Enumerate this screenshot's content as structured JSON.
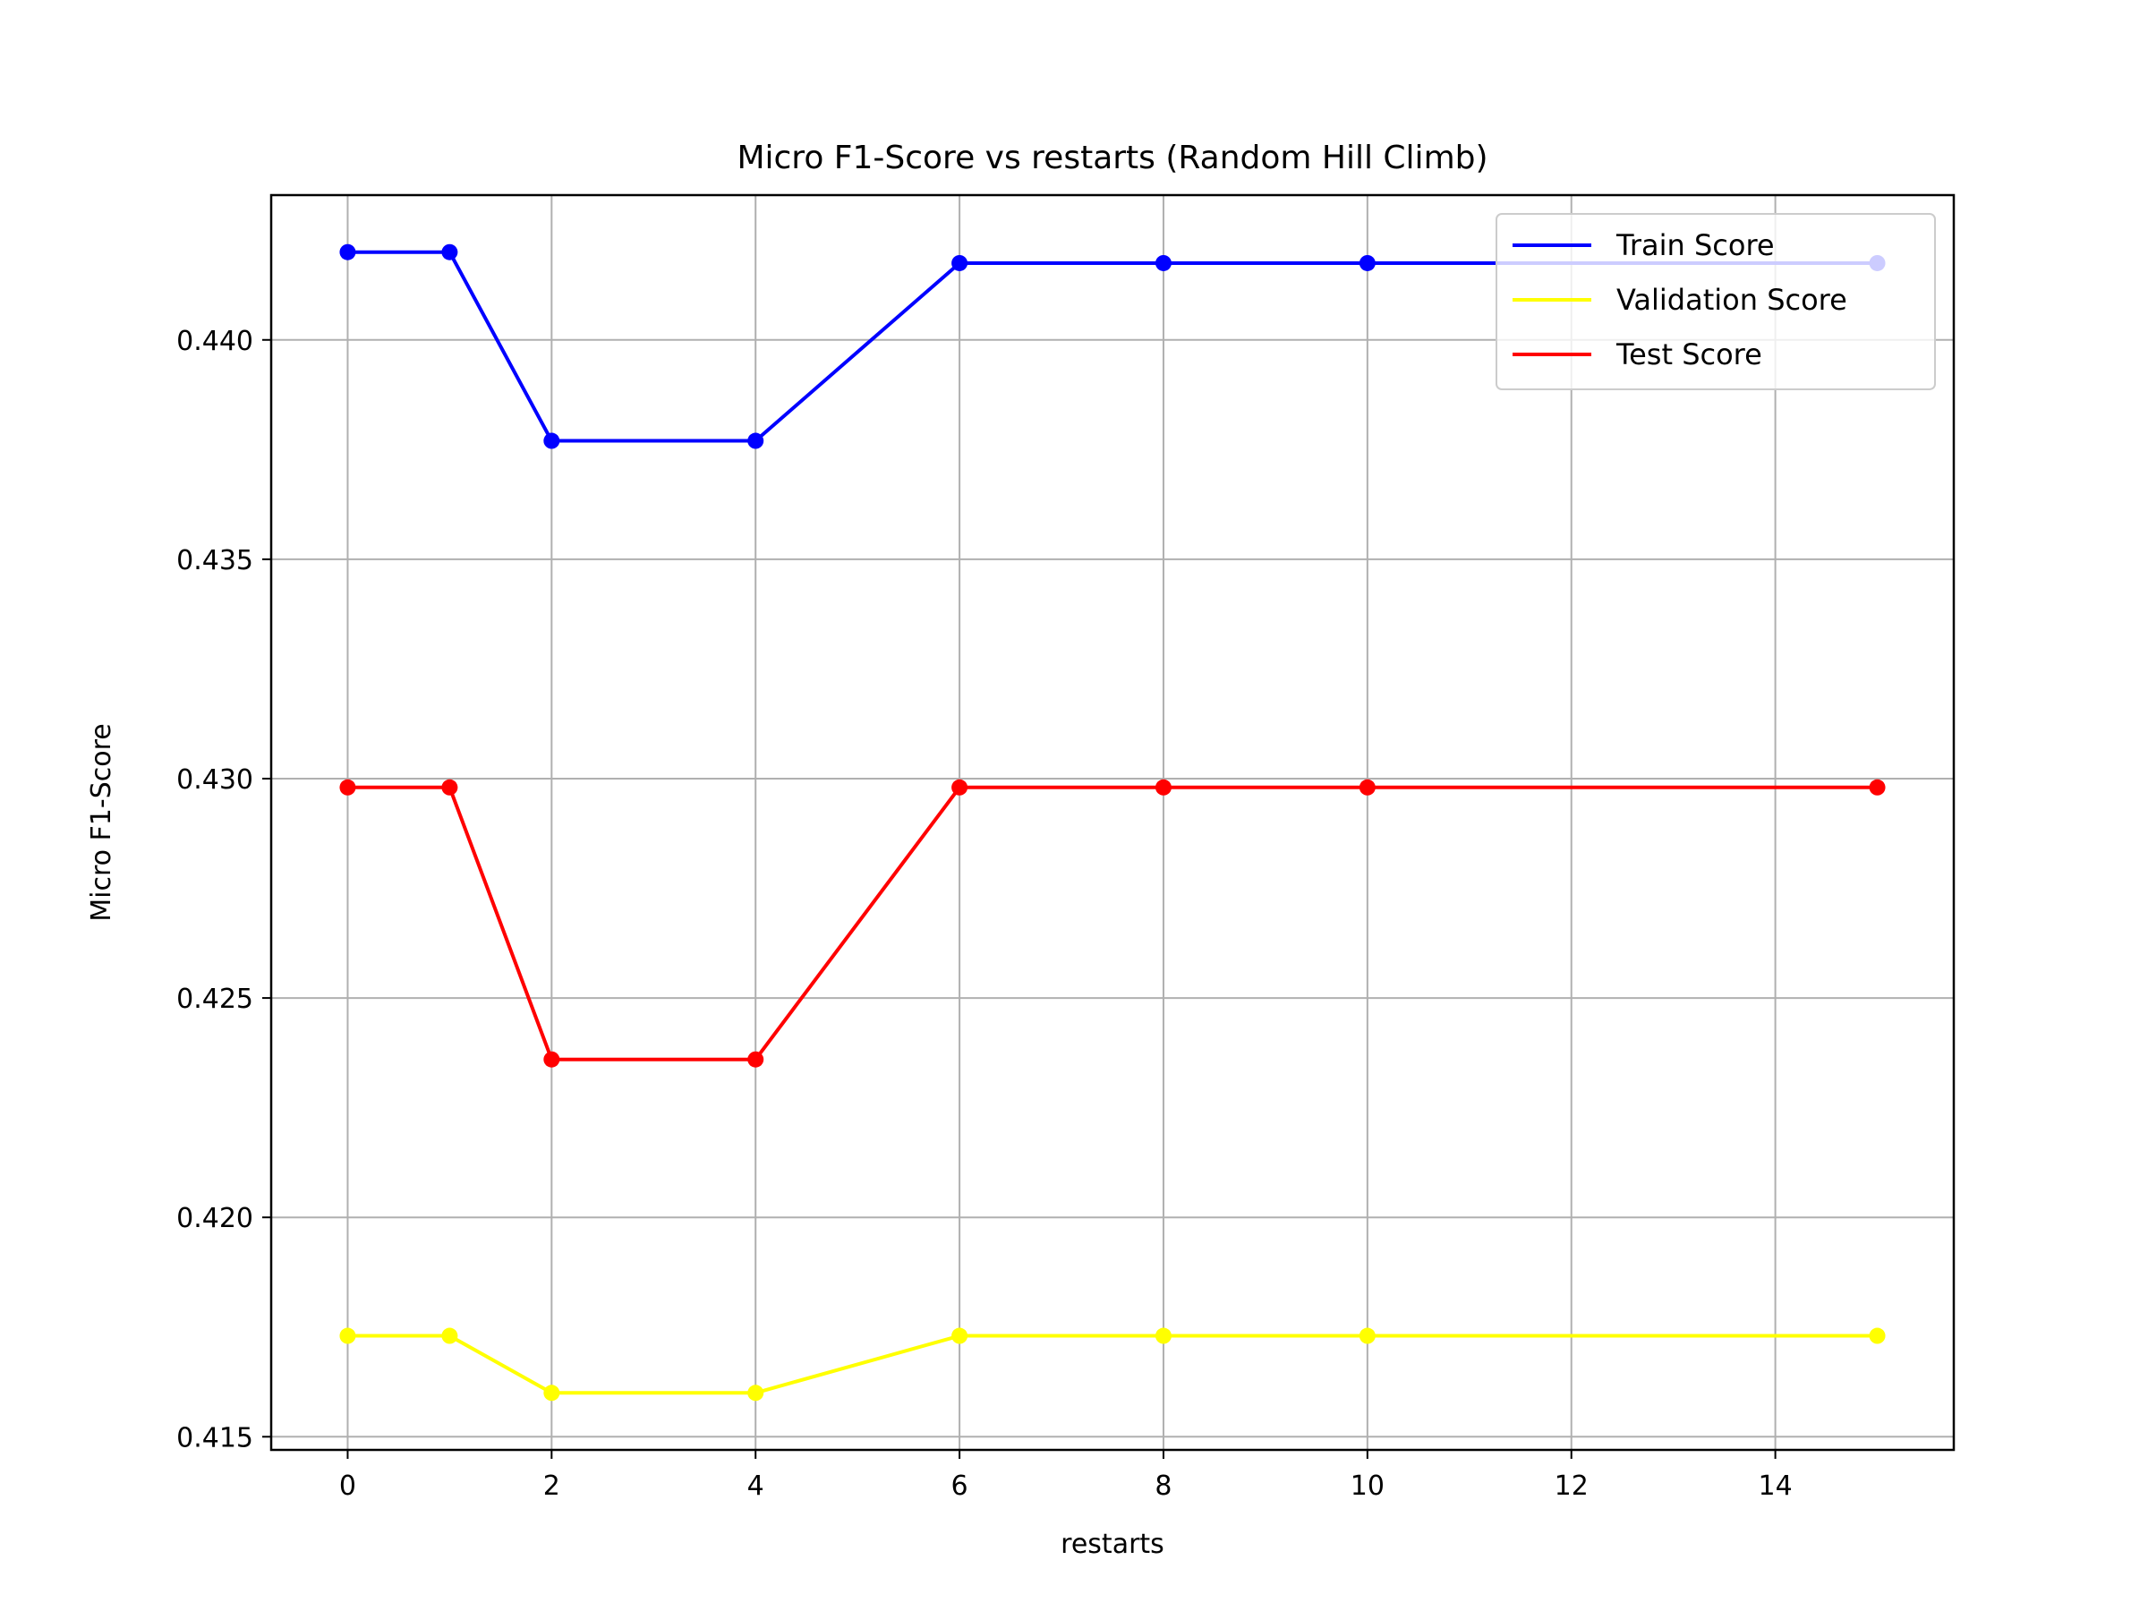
{
  "chart_data": {
    "type": "line",
    "title": "Micro F1-Score vs restarts (Random Hill Climb)",
    "xlabel": "restarts",
    "ylabel": "Micro F1-Score",
    "x": [
      0,
      1,
      2,
      4,
      6,
      8,
      10,
      15
    ],
    "xlim": [
      -0.75,
      15.75
    ],
    "ylim": [
      0.4147,
      0.4433
    ],
    "xticks": [
      0,
      2,
      4,
      6,
      8,
      10,
      12,
      14
    ],
    "xtick_labels": [
      "0",
      "2",
      "4",
      "6",
      "8",
      "10",
      "12",
      "14"
    ],
    "yticks": [
      0.415,
      0.42,
      0.425,
      0.43,
      0.435,
      0.44
    ],
    "ytick_labels": [
      "0.415",
      "0.420",
      "0.425",
      "0.430",
      "0.435",
      "0.440"
    ],
    "grid": true,
    "legend_position": "top-right",
    "series": [
      {
        "name": "Train Score",
        "color": "#0000ff",
        "values": [
          0.442,
          0.442,
          0.4377,
          0.4377,
          0.44175,
          0.44175,
          0.44175,
          0.44175
        ]
      },
      {
        "name": "Validation Score",
        "color": "#ffff00",
        "values": [
          0.4173,
          0.4173,
          0.416,
          0.416,
          0.4173,
          0.4173,
          0.4173,
          0.4173
        ]
      },
      {
        "name": "Test Score",
        "color": "#ff0000",
        "values": [
          0.4298,
          0.4298,
          0.4236,
          0.4236,
          0.4298,
          0.4298,
          0.4298,
          0.4298
        ]
      }
    ]
  }
}
